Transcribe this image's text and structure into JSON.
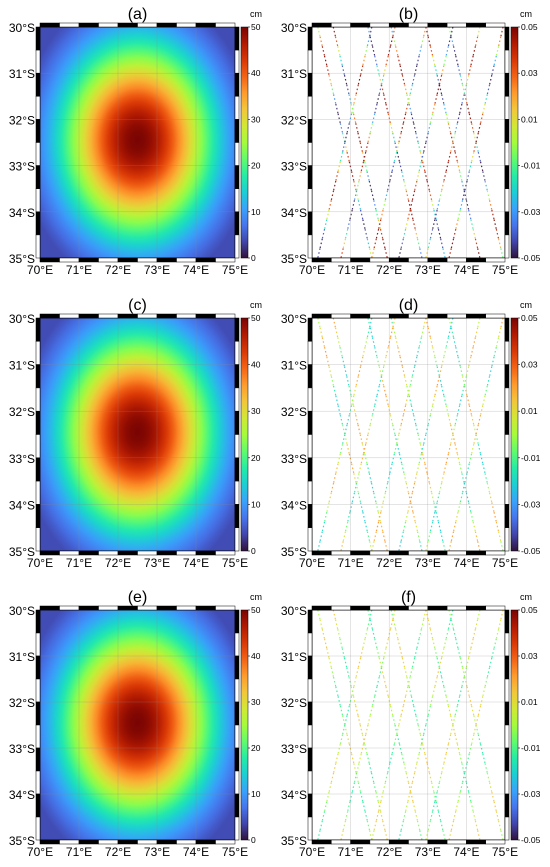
{
  "figure": {
    "lat_labels": [
      "30°S",
      "31°S",
      "32°S",
      "33°S",
      "34°S",
      "35°S"
    ],
    "lon_labels": [
      "70°E",
      "71°E",
      "72°E",
      "73°E",
      "74°E",
      "75°E"
    ],
    "extent": {
      "lon": [
        70,
        75
      ],
      "lat": [
        -35,
        -30
      ]
    },
    "colormap": [
      "#30123b",
      "#4145ab",
      "#4675ed",
      "#39a2fc",
      "#1bcfd4",
      "#24eca6",
      "#61fc6c",
      "#a4fc3b",
      "#d1e834",
      "#f3c63a",
      "#fe9b2d",
      "#f36315",
      "#d93806",
      "#b11901",
      "#7a0403"
    ],
    "panels": [
      {
        "label": "(a)",
        "kind": "field",
        "unit": "cm",
        "ticks": [
          "50",
          "40",
          "30",
          "20",
          "10",
          "0"
        ],
        "field": {
          "center_lon": 72.5,
          "center_lat": -32.45,
          "peak_cm": 50,
          "scale_lon_deg": 2.4,
          "scale_lat_deg": 2.6
        }
      },
      {
        "label": "(b)",
        "kind": "residual",
        "unit": "cm",
        "ticks": [
          "0.05",
          "0.03",
          "0.01",
          "-0.01",
          "-0.03",
          "-0.05"
        ],
        "amplitude": 1.0
      },
      {
        "label": "(c)",
        "kind": "field",
        "unit": "cm",
        "ticks": [
          "50",
          "40",
          "30",
          "20",
          "10",
          "0"
        ],
        "field": {
          "center_lon": 72.5,
          "center_lat": -32.45,
          "peak_cm": 50,
          "scale_lon_deg": 2.4,
          "scale_lat_deg": 2.6
        }
      },
      {
        "label": "(d)",
        "kind": "residual",
        "unit": "cm",
        "ticks": [
          "0.05",
          "0.03",
          "0.01",
          "-0.01",
          "-0.03",
          "-0.05"
        ],
        "amplitude": 0.45
      },
      {
        "label": "(e)",
        "kind": "field",
        "unit": "cm",
        "ticks": [
          "50",
          "40",
          "30",
          "20",
          "10",
          "0"
        ],
        "field": {
          "center_lon": 72.5,
          "center_lat": -32.45,
          "peak_cm": 50,
          "scale_lon_deg": 2.4,
          "scale_lat_deg": 2.6
        }
      },
      {
        "label": "(f)",
        "kind": "residual",
        "unit": "cm",
        "ticks": [
          "0.05",
          "0.03",
          "0.01",
          "-0.01",
          "-0.03",
          "-0.05"
        ],
        "amplitude": 0.3
      }
    ],
    "tracks": [
      {
        "lon_start": 70.15,
        "lon_end": 71.55
      },
      {
        "lon_start": 70.55,
        "lon_end": 71.95
      },
      {
        "lon_start": 71.45,
        "lon_end": 72.85
      },
      {
        "lon_start": 72.05,
        "lon_end": 73.45
      },
      {
        "lon_start": 72.95,
        "lon_end": 74.35
      },
      {
        "lon_start": 73.55,
        "lon_end": 74.95
      },
      {
        "lon_start": 71.55,
        "lon_end": 70.15
      },
      {
        "lon_start": 72.15,
        "lon_end": 70.75
      },
      {
        "lon_start": 72.95,
        "lon_end": 71.55
      },
      {
        "lon_start": 73.65,
        "lon_end": 72.25
      },
      {
        "lon_start": 74.35,
        "lon_end": 72.95
      },
      {
        "lon_start": 74.95,
        "lon_end": 73.55
      }
    ]
  }
}
